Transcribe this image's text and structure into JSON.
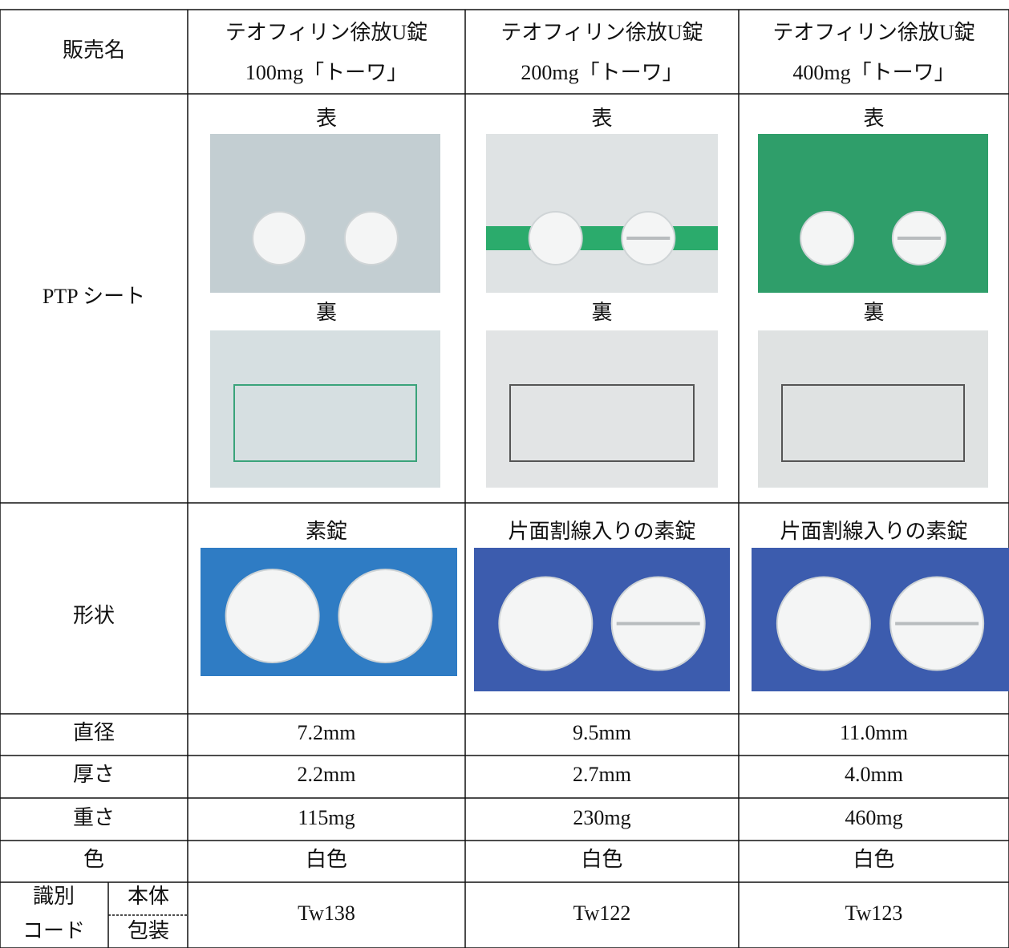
{
  "table": {
    "labels": {
      "name": "販売名",
      "ptp": "PTP シート",
      "shape": "形状",
      "diameter": "直径",
      "thickness": "厚さ",
      "weight": "重さ",
      "color": "色",
      "code_line1": "識別",
      "code_line2": "コード",
      "code_body": "本体",
      "code_package": "包装"
    },
    "columns": [
      {
        "name_line1": "テオフィリン徐放U錠",
        "name_line2": "100mg「トーワ」",
        "ptp_front": "表",
        "ptp_back": "裏",
        "shape": "素錠",
        "diameter": "7.2mm",
        "thickness": "2.2mm",
        "weight": "115mg",
        "color": "白色",
        "code": "Tw138"
      },
      {
        "name_line1": "テオフィリン徐放U錠",
        "name_line2": "200mg「トーワ」",
        "ptp_front": "表",
        "ptp_back": "裏",
        "shape": "片面割線入りの素錠",
        "diameter": "9.5mm",
        "thickness": "2.7mm",
        "weight": "230mg",
        "color": "白色",
        "code": "Tw122"
      },
      {
        "name_line1": "テオフィリン徐放U錠",
        "name_line2": "400mg「トーワ」",
        "ptp_front": "表",
        "ptp_back": "裏",
        "shape": "片面割線入りの素錠",
        "diameter": "11.0mm",
        "thickness": "4.0mm",
        "weight": "460mg",
        "color": "白色",
        "code": "Tw123"
      }
    ]
  }
}
